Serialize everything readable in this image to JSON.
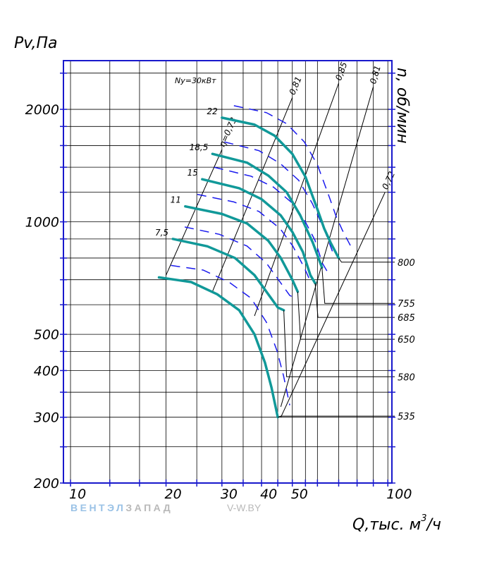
{
  "chart_data": {
    "type": "line",
    "title": "",
    "ylabel": "Pv,Па",
    "xlabel": "Q,тыс. м³/ч",
    "xlabel_main": "Q,тыс. м",
    "xlabel_sup": "3",
    "xlabel_tail": "/ч",
    "rpm_label": "n, об/мин",
    "x_scale": "log",
    "y_scale": "log",
    "xlim": [
      9.5,
      103
    ],
    "ylim": [
      200,
      2700
    ],
    "grid": true,
    "x_ticks": [
      {
        "v": 10,
        "label": "10"
      },
      {
        "v": 20,
        "label": "20"
      },
      {
        "v": 30,
        "label": "30"
      },
      {
        "v": 40,
        "label": "40"
      },
      {
        "v": 50,
        "label": "50"
      },
      {
        "v": 100,
        "label": "100"
      }
    ],
    "y_ticks": [
      {
        "v": 200,
        "label": "200"
      },
      {
        "v": 300,
        "label": "300"
      },
      {
        "v": 400,
        "label": "400"
      },
      {
        "v": 500,
        "label": "500"
      },
      {
        "v": 1000,
        "label": "1000"
      },
      {
        "v": 2000,
        "label": "2000"
      }
    ],
    "x_grid": [
      10,
      13.3,
      16.5,
      20,
      25,
      30,
      35,
      40,
      45,
      50,
      55,
      60,
      70,
      80,
      90,
      100
    ],
    "y_grid": [
      200,
      250,
      300,
      350,
      400,
      450,
      500,
      600,
      700,
      800,
      900,
      1000,
      1200,
      1400,
      1600,
      1800,
      2000,
      2500
    ],
    "curve_color": "#119999",
    "dash_color": "#1a1aee",
    "frame_color": "#1818cc",
    "power_label": "Ny=30кВт",
    "power_curves": [
      {
        "label": "22",
        "points": [
          [
            30,
            1900
          ],
          [
            38,
            1820
          ],
          [
            44,
            1700
          ],
          [
            50,
            1520
          ],
          [
            55,
            1320
          ],
          [
            60,
            1080
          ],
          [
            63,
            960
          ],
          [
            66,
            880
          ],
          [
            70,
            800
          ]
        ]
      },
      {
        "label": "18,5",
        "points": [
          [
            28,
            1520
          ],
          [
            36,
            1440
          ],
          [
            42,
            1330
          ],
          [
            48,
            1200
          ],
          [
            53,
            1040
          ],
          [
            58,
            880
          ],
          [
            62,
            755
          ]
        ]
      },
      {
        "label": "15",
        "points": [
          [
            26,
            1300
          ],
          [
            34,
            1230
          ],
          [
            40,
            1150
          ],
          [
            46,
            1040
          ],
          [
            50,
            940
          ],
          [
            54,
            830
          ],
          [
            57,
            720
          ],
          [
            59,
            685
          ]
        ]
      },
      {
        "label": "11",
        "points": [
          [
            23,
            1100
          ],
          [
            30,
            1050
          ],
          [
            36,
            990
          ],
          [
            42,
            890
          ],
          [
            46,
            800
          ],
          [
            50,
            700
          ],
          [
            52,
            650
          ]
        ]
      },
      {
        "label": "7,5",
        "points": [
          [
            21,
            900
          ],
          [
            27,
            860
          ],
          [
            33,
            800
          ],
          [
            38,
            720
          ],
          [
            42,
            640
          ],
          [
            45,
            590
          ],
          [
            47,
            580
          ]
        ]
      },
      {
        "label": "",
        "points": [
          [
            19,
            710
          ],
          [
            24,
            690
          ],
          [
            29,
            640
          ],
          [
            34,
            580
          ],
          [
            38,
            500
          ],
          [
            41,
            420
          ],
          [
            43,
            360
          ],
          [
            45,
            300
          ]
        ]
      }
    ],
    "efficiency_lines": [
      {
        "label": "η=0,73",
        "points": [
          [
            20,
            720
          ],
          [
            30,
            1560
          ]
        ]
      },
      {
        "label": "0,81",
        "points": [
          [
            28,
            650
          ],
          [
            50,
            2150
          ]
        ]
      },
      {
        "label": "0,85",
        "points": [
          [
            38,
            560
          ],
          [
            70,
            2350
          ]
        ]
      },
      {
        "label": "0,81",
        "points": [
          [
            46,
            320
          ],
          [
            90,
            2300
          ]
        ]
      },
      {
        "label": "0,72",
        "points": [
          [
            46,
            300
          ],
          [
            98,
            1200
          ]
        ]
      }
    ],
    "rpm_values": [
      {
        "label": "800",
        "p": 780
      },
      {
        "label": "755",
        "p": 605
      },
      {
        "label": "685",
        "p": 555
      },
      {
        "label": "650",
        "p": 485
      },
      {
        "label": "580",
        "p": 385
      },
      {
        "label": "535",
        "p": 302
      }
    ]
  },
  "watermark": {
    "a": "ВЕНТЭЛ",
    "b": "ЗАПАД",
    "c": "V-W.BY"
  }
}
